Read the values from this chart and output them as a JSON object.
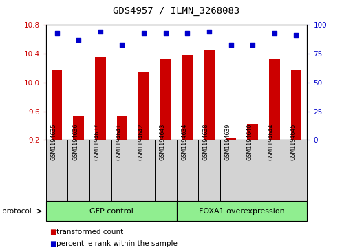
{
  "title": "GDS4957 / ILMN_3268083",
  "samples": [
    "GSM1194635",
    "GSM1194636",
    "GSM1194637",
    "GSM1194641",
    "GSM1194642",
    "GSM1194643",
    "GSM1194634",
    "GSM1194638",
    "GSM1194639",
    "GSM1194640",
    "GSM1194644",
    "GSM1194645"
  ],
  "red_values": [
    10.17,
    9.54,
    10.35,
    9.53,
    10.15,
    10.32,
    10.38,
    10.46,
    9.22,
    9.42,
    10.33,
    10.17
  ],
  "blue_values": [
    93,
    87,
    94,
    83,
    93,
    93,
    93,
    94,
    83,
    83,
    93,
    91
  ],
  "ylim_left": [
    9.2,
    10.8
  ],
  "ylim_right": [
    0,
    100
  ],
  "yticks_left": [
    9.2,
    9.6,
    10.0,
    10.4,
    10.8
  ],
  "yticks_right": [
    0,
    25,
    50,
    75,
    100
  ],
  "group1_label": "GFP control",
  "group2_label": "FOXA1 overexpression",
  "group1_count": 6,
  "group2_count": 6,
  "protocol_label": "protocol",
  "legend1": "transformed count",
  "legend2": "percentile rank within the sample",
  "red_color": "#cc0000",
  "blue_color": "#0000cc",
  "bar_width": 0.5,
  "group_color": "#90ee90",
  "cell_color": "#d3d3d3",
  "tick_color_left": "#cc0000",
  "tick_color_right": "#0000cc",
  "title_fontsize": 10,
  "label_fontsize": 7,
  "legend_fontsize": 7.5
}
